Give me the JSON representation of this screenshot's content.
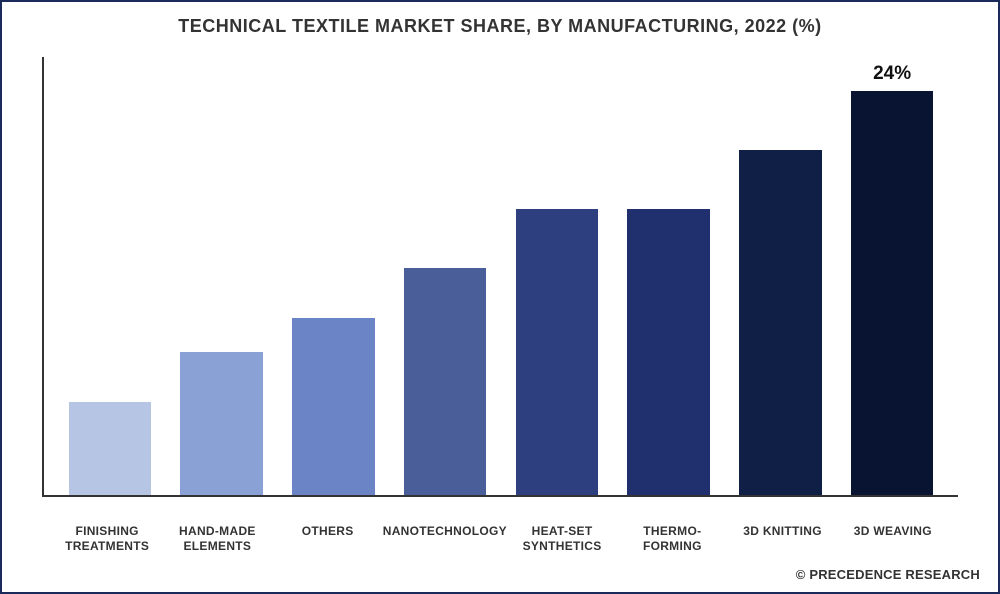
{
  "chart": {
    "type": "bar",
    "title": "TECHNICAL TEXTILE MARKET SHARE, BY MANUFACTURING, 2022 (%)",
    "title_fontsize": 18,
    "title_color": "#333333",
    "background_color": "#ffffff",
    "border_color": "#1a2a5a",
    "axis_line_color": "#333333",
    "axis_line_width": 2,
    "xlim_categories": 8,
    "ylim": [
      0,
      26
    ],
    "bar_width_ratio": 0.74,
    "label_fontsize": 12,
    "label_color": "#333333",
    "callout_fontsize": 19,
    "callout_color": "#111111",
    "categories": [
      "FINISHING\nTREATMENTS",
      "HAND-MADE\nELEMENTS",
      "OTHERS",
      "NANOTECHNOLOGY",
      "HEAT-SET\nSYNTHETICS",
      "THERMO-\nFORMING",
      "3D KNITTING",
      "3D WEAVING"
    ],
    "values": [
      5.5,
      8.5,
      10.5,
      13.5,
      17,
      17,
      20.5,
      24
    ],
    "bar_colors": [
      "#b7c5e5",
      "#8aa1d6",
      "#6a84c6",
      "#4a5f9a",
      "#2e3f80",
      "#20306e",
      "#0f1f45",
      "#091433"
    ],
    "callouts": [
      {
        "index": 7,
        "text": "24%"
      }
    ]
  },
  "attribution": "© PRECEDENCE RESEARCH"
}
